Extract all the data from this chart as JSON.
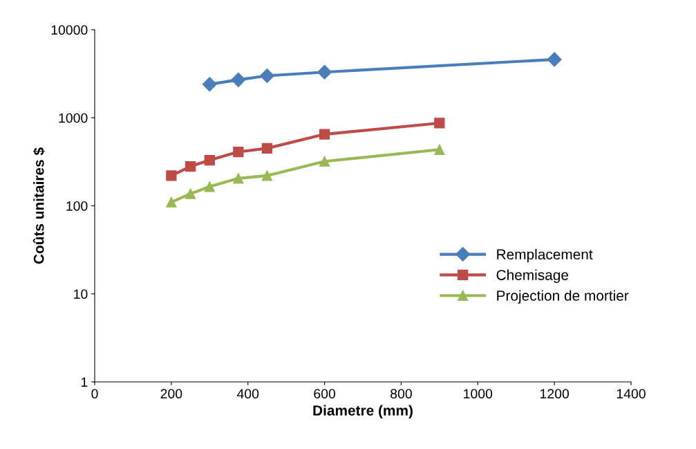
{
  "chart_data": {
    "type": "line",
    "xlabel": "Diametre (mm)",
    "ylabel": "Coûts unitaires $",
    "log": "y",
    "grid": false,
    "legend": "right",
    "xlim": [
      0,
      1400
    ],
    "xticks": [
      0,
      200,
      400,
      600,
      800,
      1000,
      1200,
      1400
    ],
    "ylim": [
      1,
      10000
    ],
    "yticks": [
      1,
      10,
      100,
      1000,
      10000
    ],
    "series": [
      {
        "name": "Remplacement",
        "color": "#4a7ebb",
        "marker": "diamond",
        "x": [
          300,
          375,
          450,
          600,
          1200
        ],
        "values": [
          2400,
          2700,
          3000,
          3300,
          4600
        ]
      },
      {
        "name": "Chemisage",
        "color": "#be4b48",
        "marker": "square",
        "x": [
          200,
          250,
          300,
          375,
          450,
          600,
          900
        ],
        "values": [
          220,
          280,
          330,
          410,
          450,
          650,
          870
        ]
      },
      {
        "name": "Projection de mortier",
        "color": "#98b954",
        "marker": "triangle",
        "x": [
          200,
          250,
          300,
          375,
          450,
          600,
          900
        ],
        "values": [
          110,
          137,
          165,
          205,
          220,
          320,
          435
        ]
      }
    ]
  }
}
